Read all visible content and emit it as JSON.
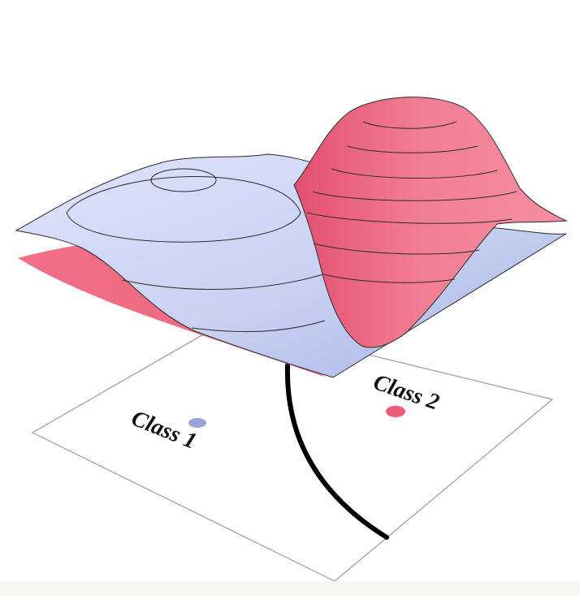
{
  "diagram": {
    "labels": {
      "class_1": "Class 1",
      "class_2": "Class 2"
    },
    "colors": {
      "class_1_fill": "#c7cff0",
      "class_1_marker": "#9aa3d4",
      "class_2_fill": "#ef6f86",
      "class_2_marker": "#ee5b7a",
      "decision_boundary": "#000000",
      "contour_line": "#2b2b2b",
      "background": "#ffffff"
    }
  }
}
